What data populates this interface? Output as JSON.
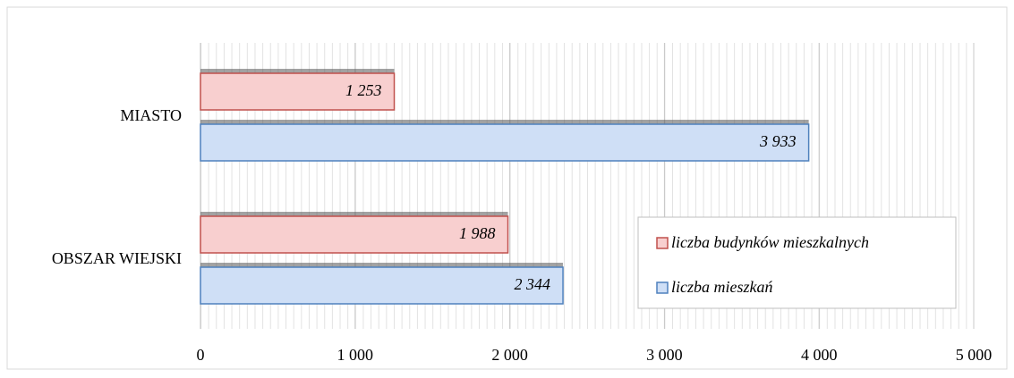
{
  "chart_data": {
    "type": "bar",
    "orientation": "horizontal",
    "categories": [
      "MIASTO",
      "OBSZAR WIEJSKI"
    ],
    "series": [
      {
        "name": "liczba budynków mieszkalnych",
        "color": "#c0504d",
        "values": [
          1253,
          1988
        ],
        "value_labels": [
          "1 253",
          "1 988"
        ]
      },
      {
        "name": "liczba mieszkań",
        "color": "#4f81bd",
        "values": [
          3933,
          2344
        ],
        "value_labels": [
          "3 933",
          "2 344"
        ]
      }
    ],
    "xlim": [
      0,
      5000
    ],
    "xticks": [
      0,
      {
        "value": 1000,
        "label": "1 000"
      },
      {
        "value": 2000,
        "label": "2 000"
      },
      {
        "value": 3000,
        "label": "3 000"
      },
      {
        "value": 4000,
        "label": "4 000"
      },
      {
        "value": 5000,
        "label": "5 000"
      }
    ],
    "grid": true,
    "legend": "lower right"
  }
}
